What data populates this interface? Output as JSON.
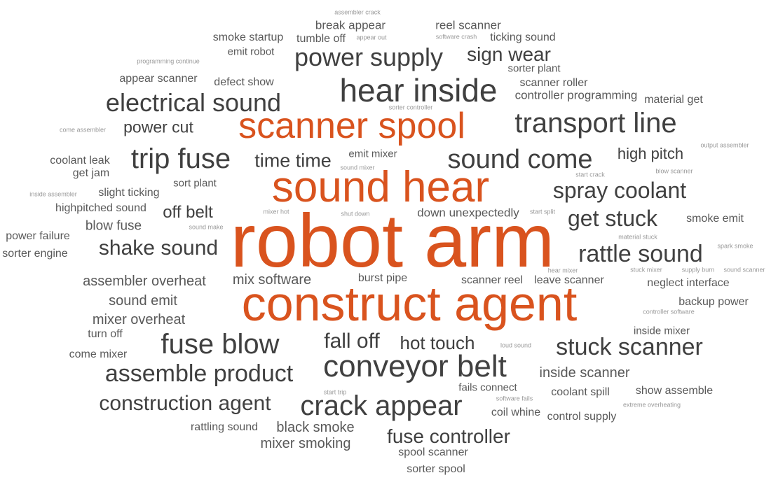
{
  "colors": {
    "highlight": "#d9531e",
    "dark": "#404040",
    "mid": "#595959",
    "light": "#7f7f7f",
    "faint": "#999999"
  },
  "words": [
    {
      "text": "assembler crack",
      "tone": "faint"
    },
    {
      "text": "break appear",
      "tone": "mid"
    },
    {
      "text": "reel scanner",
      "tone": "mid"
    },
    {
      "text": "smoke startup",
      "tone": "mid"
    },
    {
      "text": "tumble off",
      "tone": "mid"
    },
    {
      "text": "appear out",
      "tone": "faint"
    },
    {
      "text": "software crash",
      "tone": "faint"
    },
    {
      "text": "ticking sound",
      "tone": "mid"
    },
    {
      "text": "emit robot",
      "tone": "mid"
    },
    {
      "text": "power supply",
      "tone": "dark"
    },
    {
      "text": "sign wear",
      "tone": "dark"
    },
    {
      "text": "programming continue",
      "tone": "faint"
    },
    {
      "text": "sorter plant",
      "tone": "mid"
    },
    {
      "text": "appear scanner",
      "tone": "mid"
    },
    {
      "text": "defect show",
      "tone": "mid"
    },
    {
      "text": "hear inside",
      "tone": "dark"
    },
    {
      "text": "scanner roller",
      "tone": "mid"
    },
    {
      "text": "controller programming",
      "tone": "mid"
    },
    {
      "text": "material get",
      "tone": "mid"
    },
    {
      "text": "electrical sound",
      "tone": "dark"
    },
    {
      "text": "sorter controller",
      "tone": "faint"
    },
    {
      "text": "scanner spool",
      "tone": "highlight"
    },
    {
      "text": "transport line",
      "tone": "dark"
    },
    {
      "text": "come assembler",
      "tone": "faint"
    },
    {
      "text": "power cut",
      "tone": "dark"
    },
    {
      "text": "output assembler",
      "tone": "faint"
    },
    {
      "text": "emit mixer",
      "tone": "mid"
    },
    {
      "text": "trip fuse",
      "tone": "dark"
    },
    {
      "text": "time time",
      "tone": "dark"
    },
    {
      "text": "sound come",
      "tone": "dark"
    },
    {
      "text": "high pitch",
      "tone": "dark"
    },
    {
      "text": "coolant leak",
      "tone": "mid"
    },
    {
      "text": "sound mixer",
      "tone": "faint"
    },
    {
      "text": "get jam",
      "tone": "mid"
    },
    {
      "text": "start crack",
      "tone": "faint"
    },
    {
      "text": "blow scanner",
      "tone": "faint"
    },
    {
      "text": "sound hear",
      "tone": "highlight"
    },
    {
      "text": "sort plant",
      "tone": "mid"
    },
    {
      "text": "spray coolant",
      "tone": "dark"
    },
    {
      "text": "inside assembler",
      "tone": "faint"
    },
    {
      "text": "slight ticking",
      "tone": "mid"
    },
    {
      "text": "highpitched sound",
      "tone": "mid"
    },
    {
      "text": "off belt",
      "tone": "dark"
    },
    {
      "text": "mixer hot",
      "tone": "faint"
    },
    {
      "text": "shut down",
      "tone": "faint"
    },
    {
      "text": "down unexpectedly",
      "tone": "mid"
    },
    {
      "text": "start split",
      "tone": "faint"
    },
    {
      "text": "get stuck",
      "tone": "dark"
    },
    {
      "text": "smoke emit",
      "tone": "mid"
    },
    {
      "text": "power failure",
      "tone": "mid"
    },
    {
      "text": "blow fuse",
      "tone": "mid"
    },
    {
      "text": "sound make",
      "tone": "faint"
    },
    {
      "text": "robot arm",
      "tone": "highlight"
    },
    {
      "text": "material stuck",
      "tone": "faint"
    },
    {
      "text": "spark smoke",
      "tone": "faint"
    },
    {
      "text": "sorter engine",
      "tone": "mid"
    },
    {
      "text": "shake sound",
      "tone": "dark"
    },
    {
      "text": "rattle sound",
      "tone": "dark"
    },
    {
      "text": "hear mixer",
      "tone": "faint"
    },
    {
      "text": "stuck mixer",
      "tone": "faint"
    },
    {
      "text": "supply burn",
      "tone": "faint"
    },
    {
      "text": "sound scanner",
      "tone": "faint"
    },
    {
      "text": "assembler overheat",
      "tone": "mid"
    },
    {
      "text": "mix software",
      "tone": "mid"
    },
    {
      "text": "burst pipe",
      "tone": "mid"
    },
    {
      "text": "scanner reel",
      "tone": "mid"
    },
    {
      "text": "leave scanner",
      "tone": "mid"
    },
    {
      "text": "neglect interface",
      "tone": "mid"
    },
    {
      "text": "sound emit",
      "tone": "mid"
    },
    {
      "text": "construct agent",
      "tone": "highlight"
    },
    {
      "text": "backup power",
      "tone": "mid"
    },
    {
      "text": "controller software",
      "tone": "faint"
    },
    {
      "text": "mixer overheat",
      "tone": "mid"
    },
    {
      "text": "turn off",
      "tone": "mid"
    },
    {
      "text": "inside mixer",
      "tone": "mid"
    },
    {
      "text": "fall off",
      "tone": "dark"
    },
    {
      "text": "hot touch",
      "tone": "dark"
    },
    {
      "text": "loud sound",
      "tone": "faint"
    },
    {
      "text": "fuse blow",
      "tone": "dark"
    },
    {
      "text": "stuck scanner",
      "tone": "dark"
    },
    {
      "text": "come mixer",
      "tone": "mid"
    },
    {
      "text": "conveyor belt",
      "tone": "dark"
    },
    {
      "text": "assemble product",
      "tone": "dark"
    },
    {
      "text": "inside scanner",
      "tone": "mid"
    },
    {
      "text": "fails connect",
      "tone": "mid"
    },
    {
      "text": "start trip",
      "tone": "faint"
    },
    {
      "text": "coolant spill",
      "tone": "mid"
    },
    {
      "text": "show assemble",
      "tone": "mid"
    },
    {
      "text": "software fails",
      "tone": "faint"
    },
    {
      "text": "construction agent",
      "tone": "dark"
    },
    {
      "text": "crack appear",
      "tone": "dark"
    },
    {
      "text": "extreme overheating",
      "tone": "faint"
    },
    {
      "text": "coil whine",
      "tone": "mid"
    },
    {
      "text": "control supply",
      "tone": "mid"
    },
    {
      "text": "rattling sound",
      "tone": "mid"
    },
    {
      "text": "black smoke",
      "tone": "mid"
    },
    {
      "text": "mixer smoking",
      "tone": "mid"
    },
    {
      "text": "fuse controller",
      "tone": "dark"
    },
    {
      "text": "spool scanner",
      "tone": "mid"
    },
    {
      "text": "sorter spool",
      "tone": "mid"
    }
  ]
}
